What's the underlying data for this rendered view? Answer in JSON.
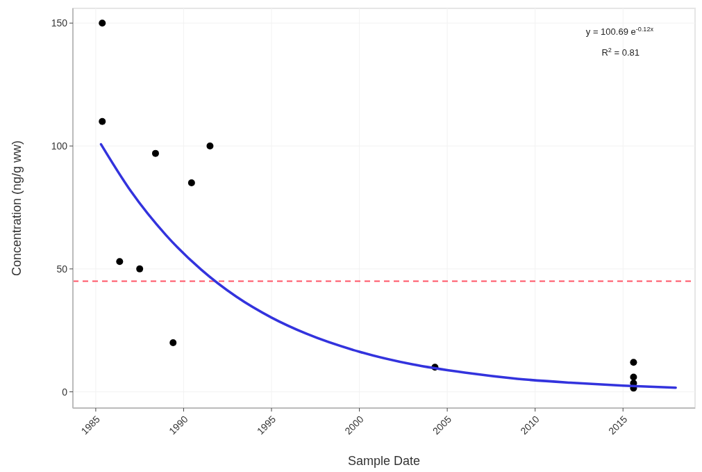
{
  "chart_data": {
    "type": "scatter",
    "xlabel": "Sample Date",
    "ylabel": "Concentration (ng/g ww)",
    "xlim": [
      1983.7,
      2019.1
    ],
    "ylim": [
      -6.6,
      156
    ],
    "xticks": [
      1985,
      1990,
      1995,
      2000,
      2005,
      2010,
      2015
    ],
    "yticks": [
      0,
      50,
      100,
      150
    ],
    "grid": true,
    "series": [
      {
        "marker": "circle",
        "color": "#000000",
        "x": [
          1985.37,
          1985.37,
          1988.4,
          1991.5,
          1990.45,
          1986.36,
          1987.5,
          1989.4,
          2004.3,
          2015.6,
          2015.6,
          2015.6,
          2015.6
        ],
        "values": [
          150,
          110,
          97,
          100,
          85,
          53,
          50,
          20,
          10,
          12,
          6,
          3.5,
          1.5
        ]
      },
      {
        "type": "line",
        "color": "#3333dd",
        "x": [
          1985.3,
          1987,
          1989,
          1991,
          1993,
          1995,
          1997,
          2000,
          2003,
          2006,
          2009,
          2012,
          2015,
          2018
        ],
        "values": [
          100.7,
          81.6,
          63.7,
          49.7,
          38.7,
          30.2,
          23.6,
          16.3,
          11.2,
          7.8,
          5.3,
          3.7,
          2.5,
          1.7
        ]
      }
    ],
    "ref_lines": [
      {
        "axis": "y",
        "value": 45,
        "color": "#ff5566",
        "line_style": "dashed"
      }
    ],
    "annotations": [
      "y = 100.69 e$^{-0.12x}$",
      "R$^{2}$ = 0.81"
    ]
  }
}
